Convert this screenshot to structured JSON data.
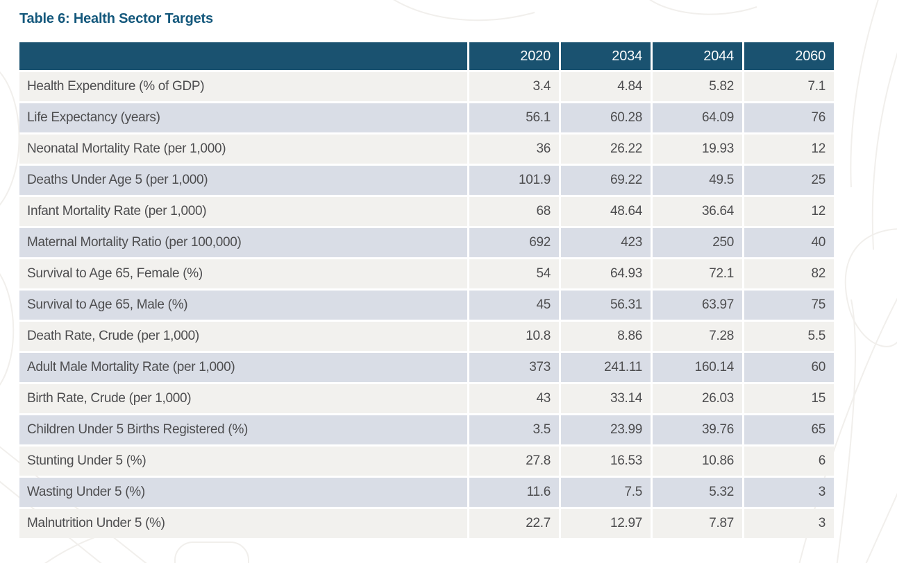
{
  "title": "Table 6: Health Sector Targets",
  "chart_data": {
    "type": "table",
    "title": "Table 6: Health Sector Targets",
    "columns": [
      "",
      "2020",
      "2034",
      "2044",
      "2060"
    ],
    "rows": [
      {
        "label": "Health Expenditure (% of GDP)",
        "values": [
          "3.4",
          "4.84",
          "5.82",
          "7.1"
        ]
      },
      {
        "label": "Life Expectancy (years)",
        "values": [
          "56.1",
          "60.28",
          "64.09",
          "76"
        ]
      },
      {
        "label": "Neonatal Mortality Rate (per 1,000)",
        "values": [
          "36",
          "26.22",
          "19.93",
          "12"
        ]
      },
      {
        "label": "Deaths Under Age 5 (per 1,000)",
        "values": [
          "101.9",
          "69.22",
          "49.5",
          "25"
        ]
      },
      {
        "label": "Infant Mortality Rate (per 1,000)",
        "values": [
          "68",
          "48.64",
          "36.64",
          "12"
        ]
      },
      {
        "label": "Maternal Mortality Ratio (per 100,000)",
        "values": [
          "692",
          "423",
          "250",
          "40"
        ]
      },
      {
        "label": "Survival to Age 65, Female (%)",
        "values": [
          "54",
          "64.93",
          "72.1",
          "82"
        ]
      },
      {
        "label": "Survival to Age 65, Male (%)",
        "values": [
          "45",
          "56.31",
          "63.97",
          "75"
        ]
      },
      {
        "label": "Death Rate, Crude (per 1,000)",
        "values": [
          "10.8",
          "8.86",
          "7.28",
          "5.5"
        ]
      },
      {
        "label": "Adult Male Mortality Rate (per 1,000)",
        "values": [
          "373",
          "241.11",
          "160.14",
          "60"
        ]
      },
      {
        "label": "Birth Rate, Crude (per 1,000)",
        "values": [
          "43",
          "33.14",
          "26.03",
          "15"
        ]
      },
      {
        "label": "Children Under 5 Births Registered (%)",
        "values": [
          "3.5",
          "23.99",
          "39.76",
          "65"
        ]
      },
      {
        "label": "Stunting Under 5 (%)",
        "values": [
          "27.8",
          "16.53",
          "10.86",
          "6"
        ]
      },
      {
        "label": "Wasting Under 5 (%)",
        "values": [
          "11.6",
          "7.5",
          "5.32",
          "3"
        ]
      },
      {
        "label": "Malnutrition Under 5 (%)",
        "values": [
          "22.7",
          "12.97",
          "7.87",
          "3"
        ]
      }
    ]
  },
  "colors": {
    "header_bg": "#1A5270",
    "title": "#14587C",
    "row_odd": "#F2F1EE",
    "row_even": "#D9DDE6",
    "text": "#4D4D4F",
    "header_text": "#FAFBFB"
  }
}
